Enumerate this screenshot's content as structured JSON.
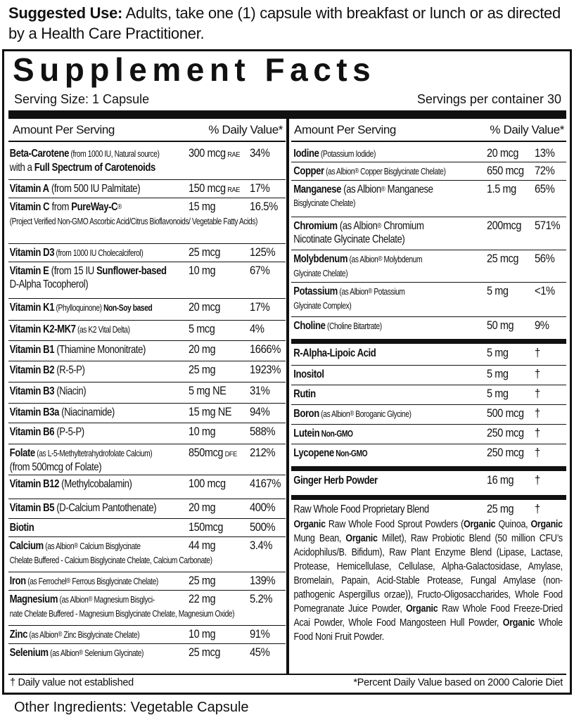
{
  "suggested_use": {
    "label": "Suggested Use:",
    "text": " Adults, take one (1) capsule with breakfast or lunch or as directed by a Health Care Practitioner."
  },
  "title": "Supplement Facts",
  "serving_size": "Serving Size: 1 Capsule",
  "servings_per_container": "Servings per container 30",
  "headers": {
    "amount": "Amount Per Serving",
    "dv": "% Daily Value*"
  },
  "left": [
    {
      "name": [
        [
          "Beta-Carotene",
          "b"
        ],
        [
          " (from 1000 IU, Natural source)\n",
          "s"
        ],
        [
          "with a ",
          "n"
        ],
        [
          "Full Spectrum of Carotenoids",
          "b"
        ]
      ],
      "amount": "300 mcg",
      "suffix": "RAE",
      "dv": "34%"
    },
    {
      "name": [
        [
          "Vitamin A",
          "b"
        ],
        [
          " (from 500 IU Palmitate)",
          "n"
        ]
      ],
      "amount": "150 mcg",
      "suffix": "RAE",
      "dv": "17%"
    },
    {
      "name": [
        [
          "Vitamin C",
          "b"
        ],
        [
          "  from ",
          "n"
        ],
        [
          "PureWay-C",
          "b"
        ],
        [
          "®",
          "sup"
        ],
        [
          "\n(Project Verified Non-GMO Ascorbic Acid/Citrus Bioflavonoids/ Vegetable Fatty Acids)",
          "s"
        ]
      ],
      "amount": "15 mg",
      "dv": "16.5%"
    },
    {
      "name": [
        [
          "Vitamin D3",
          "b"
        ],
        [
          " (from 1000 IU Cholecalciferol)",
          "s"
        ]
      ],
      "amount": "25 mcg",
      "dv": "125%"
    },
    {
      "name": [
        [
          "Vitamin E",
          "b"
        ],
        [
          "  (from 15 IU ",
          "n"
        ],
        [
          "Sunflower-based",
          "b"
        ],
        [
          "\nD-Alpha Tocopherol)",
          "n"
        ]
      ],
      "amount": "10 mg",
      "dv": "67%"
    },
    {
      "name": [
        [
          "Vitamin K1",
          "b"
        ],
        [
          " (Phylloquinone) ",
          "s"
        ],
        [
          "Non-Soy based",
          "bs"
        ]
      ],
      "amount": "20 mcg",
      "dv": "17%"
    },
    {
      "name": [
        [
          "Vitamin K2-MK7",
          "b"
        ],
        [
          " (as K2 Vital Delta)",
          "s"
        ]
      ],
      "amount": "5 mcg",
      "dv": "4%"
    },
    {
      "name": [
        [
          "Vitamin B1",
          "b"
        ],
        [
          " (Thiamine Mononitrate)",
          "n"
        ]
      ],
      "amount": "20 mg",
      "dv": "1666%"
    },
    {
      "name": [
        [
          "Vitamin B2",
          "b"
        ],
        [
          " (R-5-P)",
          "n"
        ]
      ],
      "amount": "25 mg",
      "dv": "1923%"
    },
    {
      "name": [
        [
          "Vitamin B3",
          "b"
        ],
        [
          " (Niacin)",
          "n"
        ]
      ],
      "amount": "5 mg NE",
      "dv": "31%"
    },
    {
      "name": [
        [
          "Vitamin B3a",
          "b"
        ],
        [
          " (Niacinamide)",
          "n"
        ]
      ],
      "amount": "15 mg NE",
      "dv": "94%"
    },
    {
      "name": [
        [
          "Vitamin B6",
          "b"
        ],
        [
          " (P-5-P)",
          "n"
        ]
      ],
      "amount": "10 mg",
      "dv": "588%"
    },
    {
      "name": [
        [
          "Folate",
          "b"
        ],
        [
          " (as L-5-Methyltetrahydrofolate Calcium)\n",
          "s"
        ],
        [
          "(from 500mcg of Folate)",
          "n"
        ]
      ],
      "amount": "850mcg",
      "suffix": "DFE",
      "dv": "212%"
    },
    {
      "name": [
        [
          "Vitamin B12",
          "b"
        ],
        [
          " (Methylcobalamin)",
          "n"
        ]
      ],
      "amount": "100 mcg",
      "dv": "4167%"
    },
    {
      "name": [
        [
          "Vitamin B5",
          "b"
        ],
        [
          " (D-Calcium Pantothenate)",
          "n"
        ]
      ],
      "amount": "20 mg",
      "dv": "400%"
    },
    {
      "name": [
        [
          "Biotin",
          "b"
        ]
      ],
      "amount": "150mcg",
      "dv": "500%"
    },
    {
      "name": [
        [
          "Calcium",
          "b"
        ],
        [
          " (as Albion",
          "s"
        ],
        [
          "®",
          "sup"
        ],
        [
          " Calcium Bisglycinate\n",
          "s"
        ],
        [
          "Chelate Buffered - Calcium Bisglycinate Chelate, Calcium Carbonate)",
          "s"
        ]
      ],
      "amount": "44 mg",
      "dv": "3.4%"
    },
    {
      "name": [
        [
          "Iron",
          "b"
        ],
        [
          " (as Ferrochel",
          "s"
        ],
        [
          "®",
          "sup"
        ],
        [
          " Ferrous Bisglycinate Chelate)",
          "s"
        ]
      ],
      "amount": "25 mg",
      "dv": "139%"
    },
    {
      "name": [
        [
          "Magnesium",
          "b"
        ],
        [
          " (as Albion",
          "s"
        ],
        [
          "®",
          "sup"
        ],
        [
          " Magnesium Bisglyci-\n",
          "s"
        ],
        [
          "nate Chelate Buffered - Magnesium Bisglycinate Chelate, Magnesium Oxide)",
          "s"
        ]
      ],
      "amount": "22 mg",
      "dv": "5.2%"
    },
    {
      "name": [
        [
          "Zinc",
          "b"
        ],
        [
          " (as Albion",
          "s"
        ],
        [
          "®",
          "sup"
        ],
        [
          " Zinc Bisglycinate Chelate)",
          "s"
        ]
      ],
      "amount": "10 mg",
      "dv": "91%"
    },
    {
      "name": [
        [
          "Selenium",
          "b"
        ],
        [
          " (as Albion",
          "s"
        ],
        [
          "®",
          "sup"
        ],
        [
          " Selenium Glycinate)",
          "s"
        ]
      ],
      "amount": "25 mcg",
      "dv": "45%"
    }
  ],
  "right_groups": [
    [
      {
        "name": [
          [
            "Iodine",
            "b"
          ],
          [
            " (Potassium Iodide)",
            "s"
          ]
        ],
        "amount": "20 mcg",
        "dv": "13%"
      },
      {
        "name": [
          [
            "Copper",
            "b"
          ],
          [
            " (as Albion",
            "s"
          ],
          [
            "®",
            "sup"
          ],
          [
            " Copper Bisglycinate Chelate)",
            "s"
          ]
        ],
        "amount": "650 mcg",
        "dv": "72%"
      },
      {
        "name": [
          [
            "Manganese",
            "b"
          ],
          [
            " (as Albion",
            "n"
          ],
          [
            "®",
            "sup"
          ],
          [
            " Manganese\n",
            "n"
          ],
          [
            "Bisglycinate Chelate)",
            "s"
          ]
        ],
        "amount": "1.5 mg",
        "dv": "65%"
      },
      {
        "name": [
          [
            "Chromium",
            "b"
          ],
          [
            " (as Albion",
            "n"
          ],
          [
            "®",
            "sup"
          ],
          [
            " Chromium\n",
            "n"
          ],
          [
            "Nicotinate Glycinate Chelate)",
            "n"
          ]
        ],
        "amount": "200mcg",
        "dv": "571%"
      },
      {
        "name": [
          [
            "Molybdenum",
            "b"
          ],
          [
            " (as Albion",
            "s"
          ],
          [
            "®",
            "sup"
          ],
          [
            " Molybdenum\n",
            "s"
          ],
          [
            "Glycinate Chelate)",
            "s"
          ]
        ],
        "amount": "25 mcg",
        "dv": "56%"
      },
      {
        "name": [
          [
            "Potassium",
            "b"
          ],
          [
            " (as Albion",
            "s"
          ],
          [
            "®",
            "sup"
          ],
          [
            " Potassium\n",
            "s"
          ],
          [
            "Glycinate Complex)",
            "s"
          ]
        ],
        "amount": "5 mg",
        "dv": "<1%"
      },
      {
        "name": [
          [
            "Choline",
            "b"
          ],
          [
            " (Choline Bitartrate)",
            "s"
          ]
        ],
        "amount": "50 mg",
        "dv": "9%"
      }
    ],
    [
      {
        "name": [
          [
            "R-Alpha-Lipoic Acid",
            "b"
          ]
        ],
        "amount": "5 mg",
        "dv": "†"
      },
      {
        "name": [
          [
            "Inositol",
            "b"
          ]
        ],
        "amount": "5 mg",
        "dv": "†"
      },
      {
        "name": [
          [
            "Rutin",
            "b"
          ]
        ],
        "amount": "5 mg",
        "dv": "†"
      },
      {
        "name": [
          [
            "Boron",
            "b"
          ],
          [
            " (as Albion",
            "s"
          ],
          [
            "®",
            "sup"
          ],
          [
            " Boroganic Glycine)",
            "s"
          ]
        ],
        "amount": "500 mcg",
        "dv": "†"
      },
      {
        "name": [
          [
            "Lutein",
            "b"
          ],
          [
            "  Non-GMO",
            "bs"
          ]
        ],
        "amount": "250 mcg",
        "dv": "†"
      },
      {
        "name": [
          [
            "Lycopene",
            "b"
          ],
          [
            "  Non-GMO",
            "bs"
          ]
        ],
        "amount": "250 mcg",
        "dv": "†"
      }
    ],
    [
      {
        "name": [
          [
            "Ginger Herb Powder",
            "b"
          ]
        ],
        "amount": "16 mg",
        "dv": "†"
      }
    ],
    [
      {
        "name": [
          [
            "Raw Whole Food Proprietary Blend",
            "n"
          ]
        ],
        "amount": "25 mg",
        "dv": "†",
        "description": [
          [
            "Organic",
            "b"
          ],
          [
            " Raw Whole Food Sprout Powders (",
            "n"
          ],
          [
            "Organic",
            "b"
          ],
          [
            " Quinoa, ",
            "n"
          ],
          [
            "Organic",
            "b"
          ],
          [
            " Mung Bean, ",
            "n"
          ],
          [
            "Organic",
            "b"
          ],
          [
            " Millet), Raw Probiotic Blend (50 million CFU’s Acidophilus/B. Bifidum), Raw Plant Enzyme Blend (Lipase, Lactase, Protease, Hemicellulase, Cellulase, Alpha-Galactosidase, Amylase, Bromelain, Papain, Acid-Stable Protease, Fungal Amylase (non-pathogenic Aspergillus orzae)), Fructo-Oligosaccharides, Whole Food Pomegranate Juice Powder, ",
            "n"
          ],
          [
            "Organic",
            "b"
          ],
          [
            " Raw Whole Food Freeze-Dried Acai Powder, Whole Food Mangosteen Hull Powder, ",
            "n"
          ],
          [
            "Organic",
            "b"
          ],
          [
            " Whole Food Noni Fruit Powder.",
            "n"
          ]
        ]
      }
    ]
  ],
  "footnotes": {
    "left": "† Daily value not established",
    "right": "*Percent Daily Value based on 2000 Calorie Diet"
  },
  "other_ingredients": "Other Ingredients: Vegetable Capsule"
}
